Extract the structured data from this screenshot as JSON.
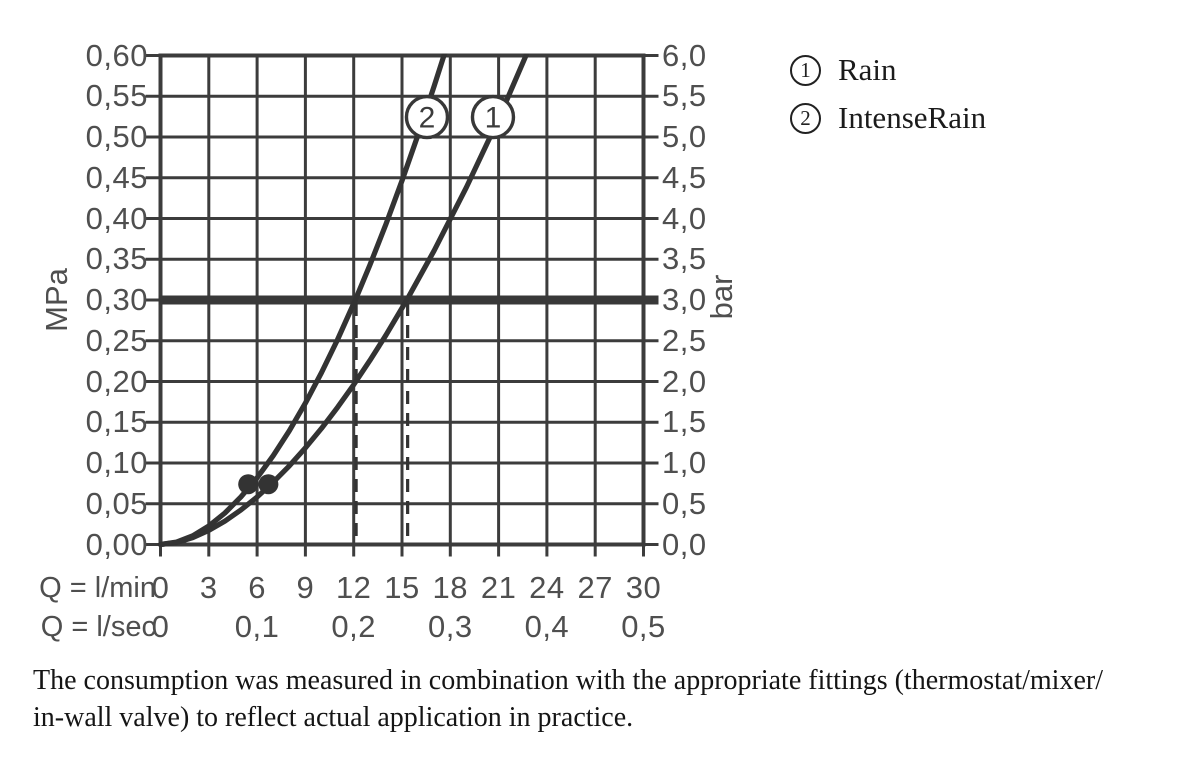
{
  "chart_data": {
    "type": "line",
    "description": "Shower spray flow rate vs water pressure diagram",
    "x_axis": {
      "label_lmin": "Q = l/min",
      "label_lsec": "Q = l/sec",
      "ticks_lmin": [
        "0",
        "3",
        "6",
        "9",
        "12",
        "15",
        "18",
        "21",
        "24",
        "27",
        "30"
      ],
      "ticks_lmin_values": [
        0,
        3,
        6,
        9,
        12,
        15,
        18,
        21,
        24,
        27,
        30
      ],
      "ticks_lsec": [
        "0",
        "0,1",
        "0,2",
        "0,3",
        "0,4",
        "0,5"
      ],
      "ticks_lsec_positions_lmin": [
        0,
        6,
        12,
        18,
        24,
        30
      ],
      "range_lmin": [
        0,
        30
      ]
    },
    "y_axis_left": {
      "unit": "MPa",
      "ticks": [
        "0,60",
        "0,55",
        "0,50",
        "0,45",
        "0,40",
        "0,35",
        "0,30",
        "0,25",
        "0,20",
        "0,15",
        "0,10",
        "0,05",
        "0,00"
      ],
      "range_mpa": [
        0,
        0.6
      ]
    },
    "y_axis_right": {
      "unit": "bar",
      "ticks": [
        "6,0",
        "5,5",
        "5,0",
        "4,5",
        "4,0",
        "3,5",
        "3,0",
        "2,5",
        "2,0",
        "1,5",
        "1,0",
        "0,5",
        "0,0"
      ],
      "range_bar": [
        0,
        6
      ]
    },
    "grid": true,
    "reference_pressure_line_mpa": 0.3,
    "reference_drop_lines_lmin": [
      12.15,
      15.35
    ],
    "measurement_dots_lmin_mpa": [
      [
        5.45,
        0.074
      ],
      [
        6.7,
        0.074
      ]
    ],
    "series": [
      {
        "id": "1",
        "name": "Rain",
        "label": "1",
        "label_at": {
          "lmin": 20.65,
          "mpa": 0.5245
        },
        "flow_at_3bar_lmin": 15.3,
        "points_lmin_mpa": [
          [
            0,
            0
          ],
          [
            1,
            0.0025
          ],
          [
            2,
            0.0085
          ],
          [
            3,
            0.0173
          ],
          [
            4,
            0.0287
          ],
          [
            5,
            0.0424
          ],
          [
            6,
            0.0583
          ],
          [
            7,
            0.0764
          ],
          [
            8,
            0.0965
          ],
          [
            9,
            0.1185
          ],
          [
            10,
            0.1425
          ],
          [
            11,
            0.1684
          ],
          [
            12,
            0.1961
          ],
          [
            13,
            0.2256
          ],
          [
            14,
            0.2568
          ],
          [
            15.3,
            0.3
          ],
          [
            17,
            0.3607
          ],
          [
            19,
            0.4383
          ],
          [
            21,
            0.5221
          ],
          [
            22.7,
            0.6
          ],
          [
            23.3,
            0.629
          ]
        ]
      },
      {
        "id": "2",
        "name": "IntenseRain",
        "label": "2",
        "label_at": {
          "lmin": 16.55,
          "mpa": 0.5245
        },
        "flow_at_3bar_lmin": 12.1,
        "points_lmin_mpa": [
          [
            0,
            0
          ],
          [
            1,
            0.003
          ],
          [
            2,
            0.0107
          ],
          [
            3,
            0.0227
          ],
          [
            4,
            0.0387
          ],
          [
            5,
            0.0585
          ],
          [
            6,
            0.0819
          ],
          [
            7,
            0.109
          ],
          [
            8,
            0.1395
          ],
          [
            9,
            0.1735
          ],
          [
            10,
            0.2109
          ],
          [
            11,
            0.2515
          ],
          [
            12.1,
            0.3
          ],
          [
            13,
            0.3426
          ],
          [
            14,
            0.3929
          ],
          [
            15,
            0.4464
          ],
          [
            16,
            0.5029
          ],
          [
            17,
            0.5627
          ],
          [
            17.8,
            0.612
          ],
          [
            18.1,
            0.632
          ]
        ]
      }
    ]
  },
  "legend": {
    "items": [
      {
        "number": "1",
        "label": "Rain"
      },
      {
        "number": "2",
        "label": "IntenseRain"
      }
    ]
  },
  "caption": {
    "line1": "The consumption was measured in combination with the appropriate fittings (thermostat/mixer/",
    "line2": "in-wall valve) to reflect actual application in practice."
  },
  "colors": {
    "curve": "#333333",
    "grid": "#3c3c3c",
    "reference_line": "#383838",
    "axis_label_gray": "#4f4f4f",
    "text_black": "#1b1b1b",
    "background": "#ffffff"
  }
}
